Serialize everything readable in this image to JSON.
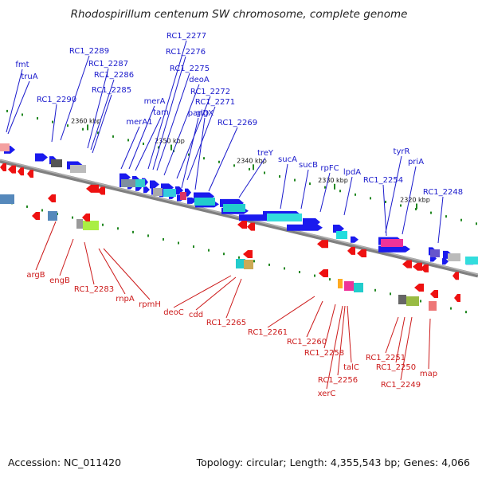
{
  "title": "Rhodospirillum centenum SW chromosome, complete genome",
  "accession": "Accession: NC_011420",
  "summary": "Topology: circular; Length: 4,355,543 bp; Genes: 4,066",
  "colors": {
    "top_label": "#1a1acc",
    "bottom_label": "#cc1a1a",
    "forward_gene": "#1a1aee",
    "reverse_gene": "#ee1111",
    "backbone": "#808080",
    "tick": "#228822"
  },
  "scale_ticks": [
    "2360 kbp",
    "2350 kbp",
    "2340 kbp",
    "2330 kbp",
    "2320 kbp"
  ],
  "top_labels": [
    "fmt",
    "truA",
    "RC1_2289",
    "RC1_2290",
    "RC1_2287",
    "RC1_2286",
    "RC1_2285",
    "RC1_2277",
    "RC1_2276",
    "RC1_2275",
    "merA",
    "tam",
    "merA1",
    "deoA",
    "RC1_2272",
    "RC1_2271",
    "panD",
    "glgX",
    "RC1_2269",
    "treY",
    "sucA",
    "sucB",
    "rpFC",
    "lpdA",
    "tyrR",
    "priA",
    "RC1_2254",
    "RC1_2248"
  ],
  "bottom_labels": [
    "argB",
    "engB",
    "RC1_2283",
    "rnpA",
    "rpmH",
    "deoC",
    "cdd",
    "RC1_2265",
    "RC1_2261",
    "RC1_2260",
    "RC1_2258",
    "talC",
    "RC1_2256",
    "xerC",
    "RC1_2251",
    "RC1_2250",
    "RC1_2249",
    "map"
  ]
}
